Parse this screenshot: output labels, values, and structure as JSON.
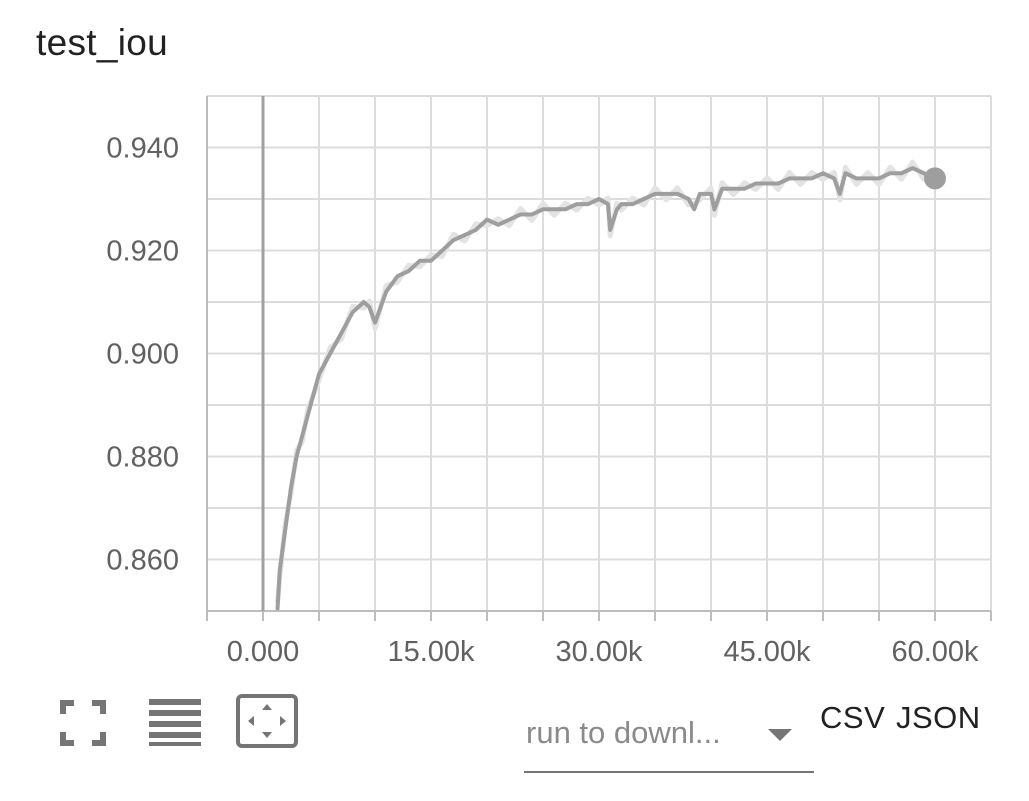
{
  "chart_data": {
    "type": "line",
    "title": "test_iou",
    "xlabel": "",
    "ylabel": "",
    "xlim": [
      -5000,
      65000
    ],
    "ylim": [
      0.85,
      0.95
    ],
    "x_ticks": [
      0,
      15000,
      30000,
      45000,
      60000
    ],
    "x_tick_labels": [
      "0.000",
      "15.00k",
      "30.00k",
      "45.00k",
      "60.00k"
    ],
    "y_ticks": [
      0.86,
      0.88,
      0.9,
      0.92,
      0.94
    ],
    "y_tick_labels": [
      "0.860",
      "0.880",
      "0.900",
      "0.920",
      "0.940"
    ],
    "grid": true,
    "series": [
      {
        "color": "#9e9e9e",
        "raw_color": "#e3e3e3",
        "x": [
          1300,
          1500,
          2000,
          2500,
          3000,
          3500,
          4000,
          5000,
          6000,
          7000,
          8000,
          9000,
          9500,
          10000,
          11000,
          12000,
          13000,
          14000,
          15000,
          16000,
          17000,
          18000,
          19000,
          20000,
          21000,
          22000,
          23000,
          24000,
          25000,
          26000,
          27000,
          28000,
          29000,
          30000,
          30800,
          31000,
          31600,
          32000,
          33000,
          34000,
          35000,
          36000,
          37000,
          38000,
          38500,
          39000,
          40000,
          40300,
          41000,
          42000,
          43000,
          44000,
          45000,
          46000,
          47000,
          48000,
          49000,
          50000,
          51000,
          51500,
          52000,
          53000,
          54000,
          55000,
          56000,
          57000,
          58000,
          59000,
          60000
        ],
        "values": [
          0.8505,
          0.858,
          0.866,
          0.874,
          0.88,
          0.884,
          0.888,
          0.896,
          0.9,
          0.904,
          0.908,
          0.91,
          0.909,
          0.906,
          0.912,
          0.915,
          0.916,
          0.918,
          0.918,
          0.92,
          0.922,
          0.923,
          0.924,
          0.926,
          0.925,
          0.926,
          0.927,
          0.927,
          0.928,
          0.928,
          0.928,
          0.929,
          0.929,
          0.93,
          0.929,
          0.924,
          0.928,
          0.929,
          0.929,
          0.93,
          0.931,
          0.931,
          0.931,
          0.93,
          0.928,
          0.931,
          0.931,
          0.928,
          0.932,
          0.932,
          0.932,
          0.933,
          0.933,
          0.933,
          0.934,
          0.934,
          0.934,
          0.935,
          0.934,
          0.931,
          0.935,
          0.934,
          0.934,
          0.934,
          0.935,
          0.935,
          0.936,
          0.935,
          0.934
        ]
      }
    ]
  },
  "toolbar": {
    "fullscreen_icon": "fullscreen-icon",
    "log_scale_icon": "lines-icon",
    "fit_domain_icon": "fit-domain-icon"
  },
  "download": {
    "run_select_placeholder": "run to downl...",
    "csv_label": "CSV",
    "json_label": "JSON"
  }
}
